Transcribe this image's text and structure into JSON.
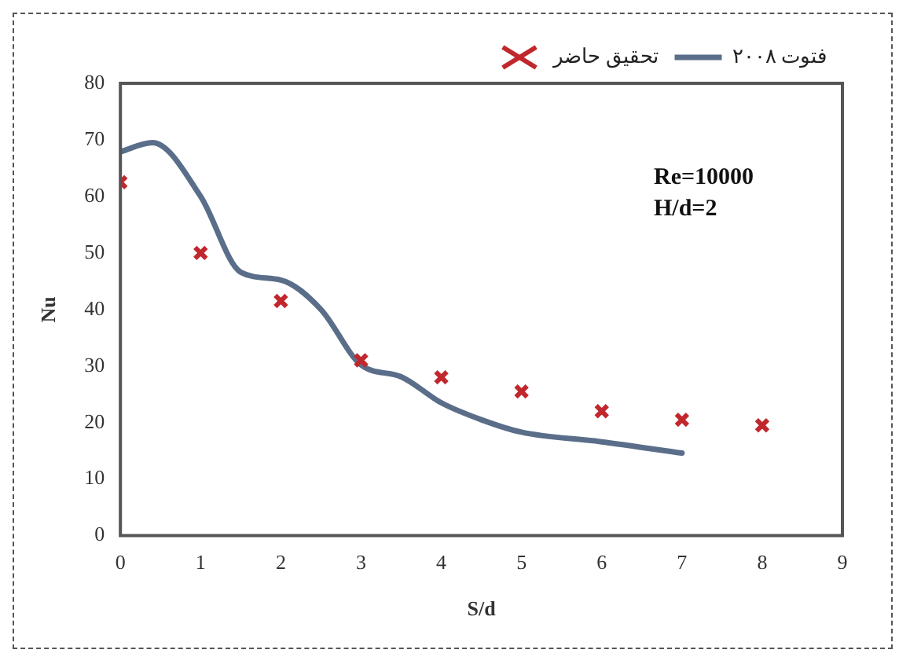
{
  "chart_data": {
    "type": "scatter",
    "xlabel": "S/d",
    "ylabel": "Nu",
    "xlim": [
      0,
      9
    ],
    "xticks": [
      0,
      1,
      2,
      3,
      4,
      5,
      6,
      7,
      8,
      9
    ],
    "ylim": [
      0,
      80
    ],
    "yticks": [
      0,
      10,
      20,
      30,
      40,
      50,
      60,
      70,
      80
    ],
    "grid": false,
    "legend": "top right",
    "annotations": [
      "Re=10000",
      "H/d=2"
    ],
    "series": [
      {
        "name": "تحقيق حاضر",
        "type": "scatter",
        "marker": "cross",
        "color": "#c0282e",
        "x": [
          0,
          1,
          2,
          3,
          4,
          5,
          6,
          7,
          8
        ],
        "values": [
          62.5,
          50,
          41.5,
          31,
          28,
          25.5,
          22,
          20.5,
          19.5
        ]
      },
      {
        "name": "فتوت ۲۰۰۸",
        "type": "line",
        "marker": "none",
        "line_style": "solid",
        "color": "#5a6e8a",
        "x": [
          0,
          0.4,
          1,
          1.5,
          2,
          2.5,
          3,
          3.5,
          4,
          4.5,
          5,
          6,
          7
        ],
        "values": [
          67.9,
          69.5,
          60,
          46.6,
          45.2,
          40,
          30.2,
          28.1,
          23.5,
          20.5,
          18.3,
          16.6,
          14.6
        ]
      }
    ]
  }
}
